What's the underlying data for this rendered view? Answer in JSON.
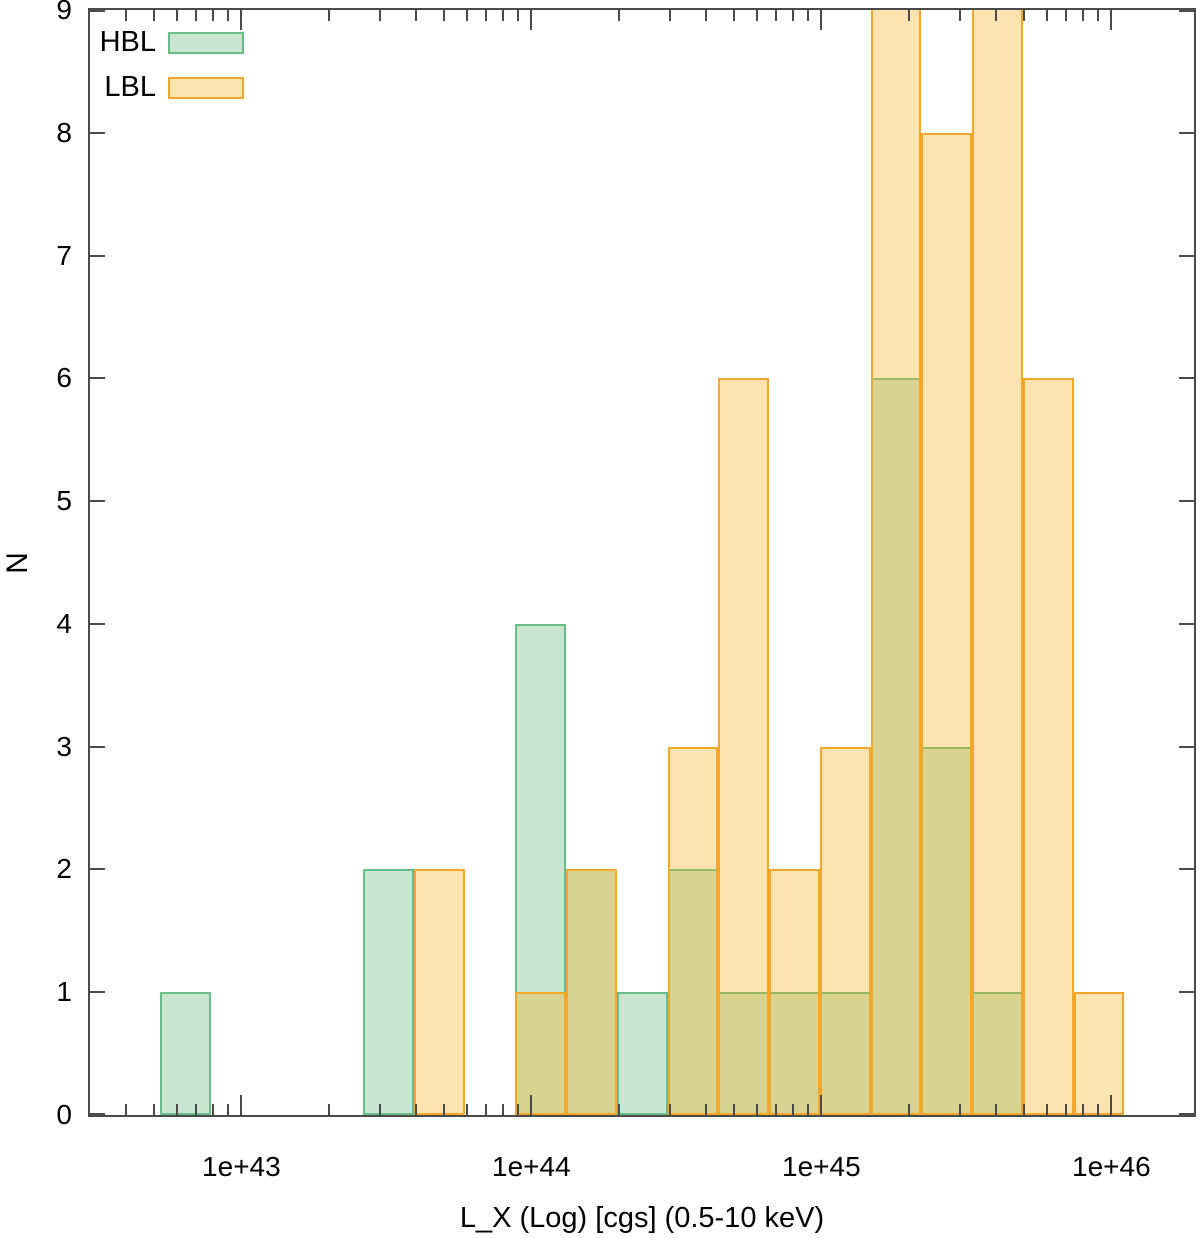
{
  "chart_data": {
    "type": "bar",
    "subtype": "overlaid-histogram",
    "x_scale": "log10",
    "title": "",
    "xlabel": "L_X (Log) [cgs] (0.5-10 keV)",
    "ylabel": "N",
    "x_range_log10": [
      42.478,
      46.285
    ],
    "ylim": [
      0,
      9
    ],
    "grid": false,
    "legend_position": "top-left",
    "x_major_ticks": [
      {
        "log10": 43,
        "label": "1e+43"
      },
      {
        "log10": 44,
        "label": "1e+44"
      },
      {
        "log10": 45,
        "label": "1e+45"
      },
      {
        "log10": 46,
        "label": "1e+46"
      }
    ],
    "y_ticks": [
      {
        "value": 0,
        "label": "0"
      },
      {
        "value": 1,
        "label": "1"
      },
      {
        "value": 2,
        "label": "2"
      },
      {
        "value": 3,
        "label": "3"
      },
      {
        "value": 4,
        "label": "4"
      },
      {
        "value": 5,
        "label": "5"
      },
      {
        "value": 6,
        "label": "6"
      },
      {
        "value": 7,
        "label": "7"
      },
      {
        "value": 8,
        "label": "8"
      },
      {
        "value": 9,
        "label": "9"
      }
    ],
    "series": [
      {
        "name": "HBL",
        "fill": "rgba(124,196,140,0.42)",
        "border": "#66bd87"
      },
      {
        "name": "LBL",
        "fill": "rgba(249,174,28,0.35)",
        "border": "#f2a62a"
      }
    ],
    "bins": [
      {
        "log10_lo": 42.72,
        "log10_hi": 42.895,
        "HBL": 1,
        "LBL": 0
      },
      {
        "log10_lo": 42.895,
        "log10_hi": 43.07,
        "HBL": 0,
        "LBL": 0
      },
      {
        "log10_lo": 43.07,
        "log10_hi": 43.245,
        "HBL": 0,
        "LBL": 0
      },
      {
        "log10_lo": 43.245,
        "log10_hi": 43.42,
        "HBL": 0,
        "LBL": 0
      },
      {
        "log10_lo": 43.42,
        "log10_hi": 43.595,
        "HBL": 2,
        "LBL": 0
      },
      {
        "log10_lo": 43.595,
        "log10_hi": 43.77,
        "HBL": 0,
        "LBL": 2
      },
      {
        "log10_lo": 43.77,
        "log10_hi": 43.945,
        "HBL": 0,
        "LBL": 0
      },
      {
        "log10_lo": 43.945,
        "log10_hi": 44.12,
        "HBL": 4,
        "LBL": 1
      },
      {
        "log10_lo": 44.12,
        "log10_hi": 44.295,
        "HBL": 2,
        "LBL": 2
      },
      {
        "log10_lo": 44.295,
        "log10_hi": 44.47,
        "HBL": 1,
        "LBL": 0
      },
      {
        "log10_lo": 44.47,
        "log10_hi": 44.645,
        "HBL": 2,
        "LBL": 3
      },
      {
        "log10_lo": 44.645,
        "log10_hi": 44.82,
        "HBL": 1,
        "LBL": 6
      },
      {
        "log10_lo": 44.82,
        "log10_hi": 44.995,
        "HBL": 1,
        "LBL": 2
      },
      {
        "log10_lo": 44.995,
        "log10_hi": 45.17,
        "HBL": 1,
        "LBL": 3
      },
      {
        "log10_lo": 45.17,
        "log10_hi": 45.345,
        "HBL": 6,
        "LBL": 9
      },
      {
        "log10_lo": 45.345,
        "log10_hi": 45.52,
        "HBL": 3,
        "LBL": 8
      },
      {
        "log10_lo": 45.52,
        "log10_hi": 45.695,
        "HBL": 1,
        "LBL": 9
      },
      {
        "log10_lo": 45.695,
        "log10_hi": 45.87,
        "HBL": 0,
        "LBL": 6
      },
      {
        "log10_lo": 45.87,
        "log10_hi": 46.045,
        "HBL": 0,
        "LBL": 1
      }
    ]
  },
  "legend": {
    "items": [
      {
        "label": "HBL"
      },
      {
        "label": "LBL"
      }
    ]
  }
}
